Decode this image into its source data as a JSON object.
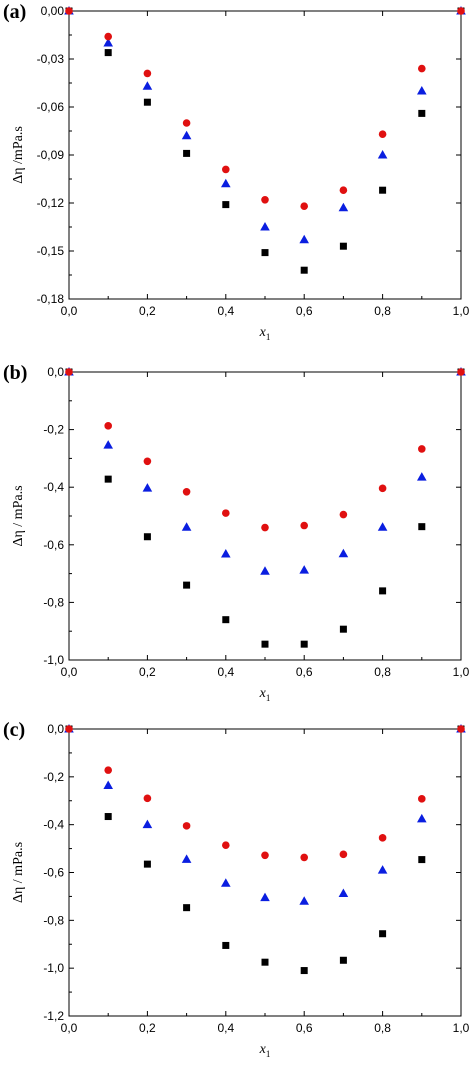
{
  "figure": {
    "colors": {
      "series_square": "#000000",
      "series_triangle": "#0a1ee0",
      "series_circle": "#e01010",
      "axis": "#000000"
    }
  },
  "chart_data": [
    {
      "type": "scatter",
      "panel_label": "(a)",
      "xlabel": "x",
      "xlabel_subscript": "1",
      "ylabel": "Δη /mPa.s",
      "xlim": [
        0.0,
        1.0
      ],
      "ylim": [
        -0.18,
        0.0
      ],
      "xticks": [
        0.0,
        0.2,
        0.4,
        0.6,
        0.8,
        1.0
      ],
      "xtick_labels": [
        "0,0",
        "0,2",
        "0,4",
        "0,6",
        "0,8",
        "1,0"
      ],
      "yticks": [
        0.0,
        -0.03,
        -0.06,
        -0.09,
        -0.12,
        -0.15,
        -0.18
      ],
      "ytick_labels": [
        "0,00",
        "-0,03",
        "-0,06",
        "-0,09",
        "-0,12",
        "-0,15",
        "-0,18"
      ],
      "x": [
        0.0,
        0.1,
        0.2,
        0.3,
        0.4,
        0.5,
        0.6,
        0.7,
        0.8,
        0.9,
        1.0
      ],
      "series": [
        {
          "marker": "square",
          "values": [
            0.0,
            -0.026,
            -0.057,
            -0.089,
            -0.121,
            -0.151,
            -0.162,
            -0.147,
            -0.112,
            -0.064,
            0.0
          ]
        },
        {
          "marker": "triangle",
          "values": [
            0.0,
            -0.02,
            -0.047,
            -0.078,
            -0.108,
            -0.135,
            -0.143,
            -0.123,
            -0.09,
            -0.05,
            0.0
          ]
        },
        {
          "marker": "circle",
          "values": [
            0.0,
            -0.016,
            -0.039,
            -0.07,
            -0.099,
            -0.118,
            -0.122,
            -0.112,
            -0.077,
            -0.036,
            0.0
          ]
        }
      ]
    },
    {
      "type": "scatter",
      "panel_label": "(b)",
      "xlabel": "x",
      "xlabel_subscript": "1",
      "ylabel": "Δη / mPa.s",
      "xlim": [
        0.0,
        1.0
      ],
      "ylim": [
        -1.0,
        0.0
      ],
      "xticks": [
        0.0,
        0.2,
        0.4,
        0.6,
        0.8,
        1.0
      ],
      "xtick_labels": [
        "0,0",
        "0,2",
        "0,4",
        "0,6",
        "0,8",
        "1,0"
      ],
      "yticks": [
        0.0,
        -0.2,
        -0.4,
        -0.6,
        -0.8,
        -1.0
      ],
      "ytick_labels": [
        "0,0",
        "-0,2",
        "-0,4",
        "-0,6",
        "-0,8",
        "-1,0"
      ],
      "x": [
        0.0,
        0.1,
        0.2,
        0.3,
        0.4,
        0.5,
        0.6,
        0.7,
        0.8,
        0.9,
        1.0
      ],
      "series": [
        {
          "marker": "square",
          "values": [
            0.0,
            -0.372,
            -0.572,
            -0.74,
            -0.86,
            -0.945,
            -0.945,
            -0.893,
            -0.76,
            -0.537,
            0.0
          ]
        },
        {
          "marker": "triangle",
          "values": [
            0.0,
            -0.254,
            -0.403,
            -0.539,
            -0.632,
            -0.692,
            -0.688,
            -0.631,
            -0.539,
            -0.365,
            0.0
          ]
        },
        {
          "marker": "circle",
          "values": [
            0.0,
            -0.187,
            -0.31,
            -0.416,
            -0.49,
            -0.54,
            -0.533,
            -0.495,
            -0.404,
            -0.267,
            0.0
          ]
        }
      ]
    },
    {
      "type": "scatter",
      "panel_label": "(c)",
      "xlabel": "x",
      "xlabel_subscript": "1",
      "ylabel": "Δη / mPa.s",
      "xlim": [
        0.0,
        1.0
      ],
      "ylim": [
        -1.2,
        0.0
      ],
      "xticks": [
        0.0,
        0.2,
        0.4,
        0.6,
        0.8,
        1.0
      ],
      "xtick_labels": [
        "0,0",
        "0,2",
        "0,4",
        "0,6",
        "0,8",
        "1,0"
      ],
      "yticks": [
        0.0,
        -0.2,
        -0.4,
        -0.6,
        -0.8,
        -1.0,
        -1.2
      ],
      "ytick_labels": [
        "0,0",
        "-0,2",
        "-0,4",
        "-0,6",
        "-0,8",
        "-1,0",
        "-1,2"
      ],
      "x": [
        0.0,
        0.1,
        0.2,
        0.3,
        0.4,
        0.5,
        0.6,
        0.7,
        0.8,
        0.9,
        1.0
      ],
      "series": [
        {
          "marker": "square",
          "values": [
            0.0,
            -0.366,
            -0.565,
            -0.747,
            -0.905,
            -0.975,
            -1.01,
            -0.967,
            -0.856,
            -0.546,
            0.0
          ]
        },
        {
          "marker": "triangle",
          "values": [
            0.0,
            -0.236,
            -0.4,
            -0.545,
            -0.645,
            -0.705,
            -0.72,
            -0.688,
            -0.59,
            -0.376,
            0.0
          ]
        },
        {
          "marker": "circle",
          "values": [
            0.0,
            -0.172,
            -0.29,
            -0.405,
            -0.486,
            -0.528,
            -0.537,
            -0.524,
            -0.455,
            -0.292,
            0.0
          ]
        }
      ]
    }
  ]
}
